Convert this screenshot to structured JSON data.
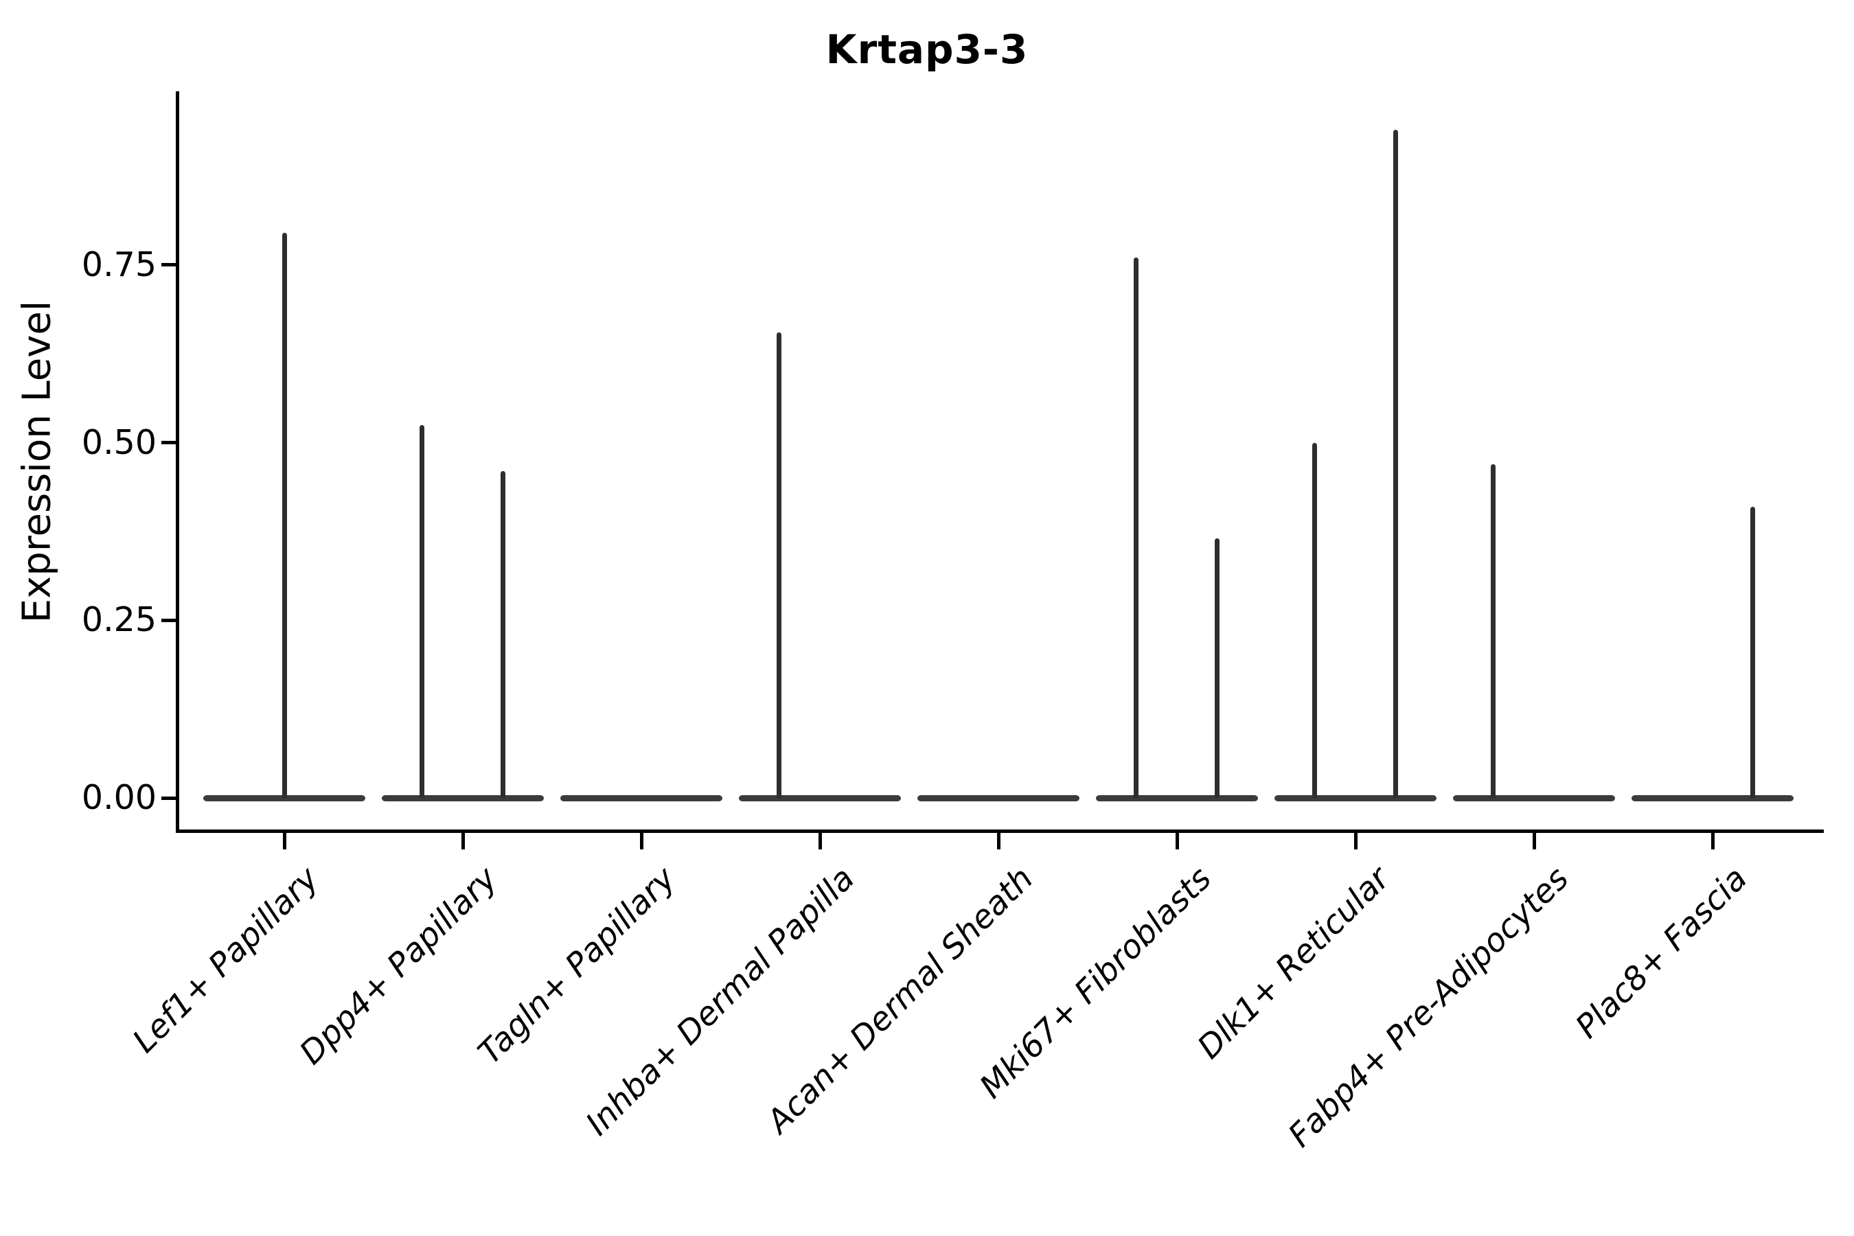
{
  "page": {
    "background": "#ffffff"
  },
  "chart_data": {
    "type": "violin",
    "title": "Krtap3-3",
    "ylabel": "Expression Level",
    "xlabel": "",
    "ylim": [
      0,
      0.99
    ],
    "grid": false,
    "legend": false,
    "x_tick_angle": -45,
    "yticks": [
      {
        "value": 0.0,
        "label": "0.00"
      },
      {
        "value": 0.25,
        "label": "0.25"
      },
      {
        "value": 0.5,
        "label": "0.50"
      },
      {
        "value": 0.75,
        "label": "0.75"
      }
    ],
    "categories": [
      "Lef1+ Papillary",
      "Dpp4+ Papillary",
      "Tagln+ Papillary",
      "Inhba+ Dermal Papilla",
      "Acan+ Dermal Sheath",
      "Mki67+ Fibroblasts",
      "Dlk1+ Reticular",
      "Fabp4+ Pre-Adipocytes",
      "Plac8+ Fascia"
    ],
    "groups": [
      {
        "category": "Lef1+ Papillary",
        "violins": [
          {
            "position": "center",
            "max": 0.795
          }
        ]
      },
      {
        "category": "Dpp4+ Papillary",
        "violins": [
          {
            "position": "left",
            "max": 0.525
          },
          {
            "position": "right",
            "max": 0.46
          }
        ]
      },
      {
        "category": "Tagln+ Papillary",
        "violins": []
      },
      {
        "category": "Inhba+ Dermal Papilla",
        "violins": [
          {
            "position": "left",
            "max": 0.655
          }
        ]
      },
      {
        "category": "Acan+ Dermal Sheath",
        "violins": []
      },
      {
        "category": "Mki67+ Fibroblasts",
        "violins": [
          {
            "position": "left",
            "max": 0.76
          },
          {
            "position": "right",
            "max": 0.365
          }
        ]
      },
      {
        "category": "Dlk1+ Reticular",
        "violins": [
          {
            "position": "left",
            "max": 0.5
          },
          {
            "position": "right",
            "max": 0.94
          }
        ]
      },
      {
        "category": "Fabp4+ Pre-Adipocytes",
        "violins": [
          {
            "position": "left",
            "max": 0.47
          }
        ]
      },
      {
        "category": "Plac8+ Fascia",
        "violins": [
          {
            "position": "right",
            "max": 0.41
          }
        ]
      }
    ],
    "colors": {
      "spike": "#2e2e2e",
      "baseline": "#3b3b3b",
      "axis": "#000000",
      "text": "#000000"
    }
  }
}
